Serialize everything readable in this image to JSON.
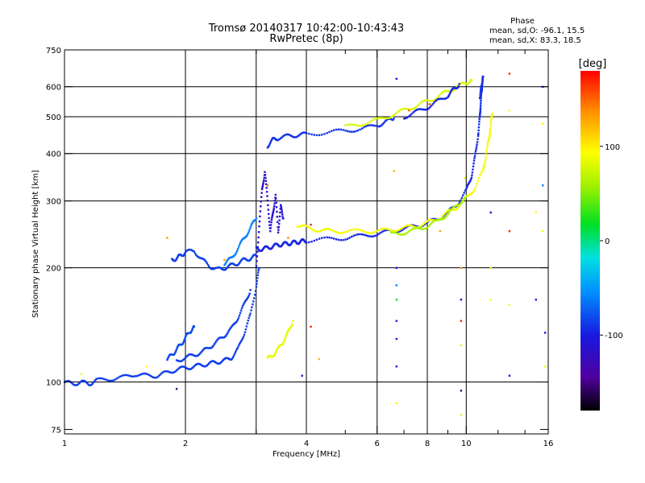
{
  "chart_data": {
    "type": "scatter",
    "title": "Tromsø 20140317 10:42:00-10:43:43",
    "subtitle": "RwPretec (8p)",
    "xlabel": "Frequency [MHz]",
    "ylabel": "Stationary phase Virtual Height [km]",
    "x_scale": "log",
    "y_scale": "log",
    "xlim": [
      1,
      16
    ],
    "ylim": [
      73,
      750
    ],
    "x_ticks": [
      1,
      2,
      4,
      6,
      8,
      10,
      16
    ],
    "x_tick_labels": [
      "1",
      "2",
      "4",
      "6",
      "8",
      "10",
      "16"
    ],
    "x_minor_ticks": [
      3,
      5,
      7,
      9,
      12,
      14
    ],
    "x_grid": [
      2,
      3,
      4,
      6,
      8,
      10
    ],
    "y_ticks": [
      75,
      100,
      200,
      300,
      400,
      500,
      600,
      750
    ],
    "y_tick_labels": [
      "75",
      "100",
      "200",
      "300",
      "400",
      "500",
      "600",
      "750"
    ],
    "y_grid": [
      100,
      200,
      300,
      400,
      500,
      600
    ],
    "grid": true,
    "stats": {
      "heading": "Phase",
      "line_o": "mean, sd,O: -96.1, 15.5",
      "line_x": "mean, sd,X:  83.3, 18.5"
    },
    "colorbar": {
      "label": "[deg]",
      "range": [
        -180,
        180
      ],
      "ticks": [
        100,
        0,
        -100
      ],
      "tick_labels": [
        "100",
        "0",
        "-100"
      ]
    },
    "traces": [
      {
        "phase": -85,
        "x": [
          1.0,
          1.05,
          1.1,
          1.15,
          1.2,
          1.3,
          1.4,
          1.5,
          1.6,
          1.7,
          1.8,
          1.9,
          2.0,
          2.1,
          2.2,
          2.3,
          2.4,
          2.5,
          2.6,
          2.7,
          2.8,
          2.9,
          3.0,
          3.05
        ],
        "y": [
          100,
          99,
          100,
          99,
          101,
          102,
          103,
          105,
          104,
          104,
          106,
          108,
          109,
          110,
          111,
          112,
          113,
          114,
          116,
          122,
          135,
          150,
          180,
          200
        ]
      },
      {
        "phase": -85,
        "x": [
          1.9,
          2.0,
          2.1,
          2.2,
          2.3,
          2.4,
          2.5,
          2.6,
          2.7,
          2.8,
          2.9
        ],
        "y": [
          114,
          116,
          118,
          120,
          124,
          128,
          133,
          138,
          148,
          160,
          175
        ]
      },
      {
        "phase": -80,
        "x": [
          1.8,
          1.85,
          1.9,
          1.95,
          2.0,
          2.05,
          2.1
        ],
        "y": [
          115,
          118,
          122,
          126,
          131,
          136,
          140
        ]
      },
      {
        "phase": -85,
        "x": [
          1.85,
          1.9,
          1.95,
          2.0,
          2.1,
          2.2,
          2.3,
          2.4,
          2.5,
          2.6,
          2.7,
          2.8,
          2.9,
          3.0
        ],
        "y": [
          210,
          212,
          216,
          220,
          222,
          210,
          202,
          198,
          200,
          203,
          206,
          210,
          212,
          215
        ]
      },
      {
        "phase": -60,
        "x": [
          2.5,
          2.6,
          2.7,
          2.8,
          2.9,
          3.0
        ],
        "y": [
          205,
          212,
          225,
          240,
          255,
          270
        ]
      },
      {
        "phase": -95,
        "x": [
          3.0,
          3.1,
          3.2,
          3.3,
          3.4,
          3.5,
          3.6,
          3.7,
          3.8,
          3.9,
          4.0,
          4.5,
          5.0,
          5.5,
          6.0,
          6.5,
          7.0,
          7.5,
          8.0,
          8.5,
          9.0,
          9.5,
          10.0,
          10.3,
          10.5,
          10.7
        ],
        "y": [
          225,
          224,
          226,
          228,
          230,
          231,
          232,
          233,
          234,
          235,
          236,
          238,
          240,
          243,
          246,
          250,
          254,
          258,
          263,
          270,
          280,
          295,
          320,
          350,
          390,
          450
        ]
      },
      {
        "phase": -90,
        "x": [
          10.7,
          10.8,
          10.85,
          10.9,
          10.95,
          11.0,
          10.9,
          10.8
        ],
        "y": [
          450,
          500,
          540,
          580,
          610,
          640,
          600,
          560
        ]
      },
      {
        "phase": -110,
        "x": [
          3.0,
          3.05,
          3.1,
          3.15,
          3.2,
          3.25,
          3.3,
          3.35,
          3.4,
          3.45,
          3.5
        ],
        "y": [
          200,
          260,
          320,
          360,
          300,
          250,
          280,
          310,
          250,
          290,
          270
        ]
      },
      {
        "phase": 90,
        "x": [
          3.8,
          4.0,
          4.3,
          4.6,
          5.0,
          5.5,
          6.0,
          6.5,
          7.0,
          7.5,
          8.0,
          8.5,
          9.0,
          9.5,
          10.0,
          10.5,
          11.0,
          11.2,
          11.4,
          11.5,
          11.6
        ],
        "y": [
          260,
          255,
          252,
          250,
          250,
          250,
          250,
          252,
          255,
          258,
          263,
          270,
          280,
          290,
          305,
          325,
          360,
          400,
          440,
          480,
          510
        ]
      },
      {
        "phase": 60,
        "x": [
          6.5,
          7.0,
          7.5,
          8.0,
          8.5,
          9.0,
          9.5,
          10.0
        ],
        "y": [
          245,
          248,
          252,
          258,
          266,
          278,
          292,
          310
        ]
      },
      {
        "phase": -90,
        "x": [
          3.2,
          3.3,
          3.4,
          3.6,
          3.8,
          4.0,
          4.5,
          5.0,
          5.5,
          6.0,
          6.3,
          6.6
        ],
        "y": [
          420,
          435,
          440,
          445,
          448,
          450,
          455,
          460,
          465,
          475,
          485,
          495
        ]
      },
      {
        "phase": 80,
        "x": [
          5.0,
          5.5,
          6.0,
          6.5,
          7.0,
          7.5,
          8.0,
          8.5,
          9.0,
          9.5,
          10.0,
          10.3
        ],
        "y": [
          470,
          480,
          490,
          505,
          520,
          535,
          550,
          565,
          585,
          600,
          615,
          625
        ]
      },
      {
        "phase": -95,
        "x": [
          7.0,
          7.5,
          8.0,
          8.5,
          9.0,
          9.3,
          9.6
        ],
        "y": [
          500,
          515,
          530,
          550,
          570,
          590,
          610
        ]
      },
      {
        "phase": 85,
        "x": [
          3.2,
          3.3,
          3.4,
          3.5,
          3.6,
          3.7
        ],
        "y": [
          115,
          118,
          122,
          128,
          135,
          145
        ]
      }
    ],
    "scatter_points": [
      {
        "x": 6.7,
        "y": 630,
        "phase": -100
      },
      {
        "x": 6.7,
        "y": 200,
        "phase": -100
      },
      {
        "x": 6.7,
        "y": 180,
        "phase": -60
      },
      {
        "x": 6.7,
        "y": 165,
        "phase": 20
      },
      {
        "x": 6.7,
        "y": 145,
        "phase": -100
      },
      {
        "x": 6.7,
        "y": 130,
        "phase": -100
      },
      {
        "x": 6.7,
        "y": 110,
        "phase": -100
      },
      {
        "x": 6.7,
        "y": 88,
        "phase": 100
      },
      {
        "x": 6.6,
        "y": 360,
        "phase": 120
      },
      {
        "x": 9.7,
        "y": 200,
        "phase": 130
      },
      {
        "x": 9.7,
        "y": 165,
        "phase": -100
      },
      {
        "x": 9.7,
        "y": 145,
        "phase": 170
      },
      {
        "x": 9.7,
        "y": 125,
        "phase": 80
      },
      {
        "x": 9.7,
        "y": 95,
        "phase": -150
      },
      {
        "x": 9.7,
        "y": 82,
        "phase": 80
      },
      {
        "x": 11.5,
        "y": 280,
        "phase": -100
      },
      {
        "x": 11.5,
        "y": 200,
        "phase": 100
      },
      {
        "x": 11.5,
        "y": 165,
        "phase": 90
      },
      {
        "x": 12.8,
        "y": 650,
        "phase": 170
      },
      {
        "x": 12.8,
        "y": 520,
        "phase": 100
      },
      {
        "x": 12.8,
        "y": 250,
        "phase": 170
      },
      {
        "x": 12.8,
        "y": 160,
        "phase": 90
      },
      {
        "x": 12.8,
        "y": 104,
        "phase": -100
      },
      {
        "x": 14.9,
        "y": 280,
        "phase": 100
      },
      {
        "x": 14.9,
        "y": 165,
        "phase": -100
      },
      {
        "x": 15.5,
        "y": 600,
        "phase": -90
      },
      {
        "x": 15.5,
        "y": 480,
        "phase": 100
      },
      {
        "x": 15.5,
        "y": 330,
        "phase": -60
      },
      {
        "x": 15.5,
        "y": 250,
        "phase": 90
      },
      {
        "x": 15.7,
        "y": 110,
        "phase": 90
      },
      {
        "x": 15.7,
        "y": 135,
        "phase": -100
      },
      {
        "x": 4.1,
        "y": 140,
        "phase": 170
      },
      {
        "x": 4.1,
        "y": 260,
        "phase": 170
      },
      {
        "x": 4.3,
        "y": 115,
        "phase": 120
      },
      {
        "x": 3.9,
        "y": 104,
        "phase": -110
      },
      {
        "x": 1.8,
        "y": 240,
        "phase": 130
      },
      {
        "x": 1.9,
        "y": 96,
        "phase": -150
      },
      {
        "x": 2.5,
        "y": 210,
        "phase": 130
      },
      {
        "x": 1.1,
        "y": 105,
        "phase": 100
      },
      {
        "x": 1.6,
        "y": 110,
        "phase": 100
      },
      {
        "x": 3.2,
        "y": 330,
        "phase": 150
      },
      {
        "x": 3.6,
        "y": 240,
        "phase": 140
      },
      {
        "x": 7.2,
        "y": 520,
        "phase": 150
      },
      {
        "x": 8.1,
        "y": 540,
        "phase": 160
      },
      {
        "x": 8.6,
        "y": 250,
        "phase": 130
      },
      {
        "x": 9.9,
        "y": 345,
        "phase": 80
      }
    ]
  }
}
